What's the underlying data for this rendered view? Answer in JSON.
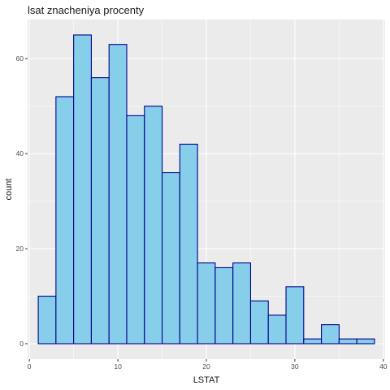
{
  "chart_data": {
    "type": "bar",
    "title": "lsat znacheniya procenty",
    "xlabel": "LSTAT",
    "ylabel": "count",
    "bin_width": 2,
    "bins": [
      {
        "x0": 1,
        "x1": 3,
        "count": 10
      },
      {
        "x0": 3,
        "x1": 5,
        "count": 52
      },
      {
        "x0": 5,
        "x1": 7,
        "count": 65
      },
      {
        "x0": 7,
        "x1": 9,
        "count": 56
      },
      {
        "x0": 9,
        "x1": 11,
        "count": 63
      },
      {
        "x0": 11,
        "x1": 13,
        "count": 48
      },
      {
        "x0": 13,
        "x1": 15,
        "count": 50
      },
      {
        "x0": 15,
        "x1": 17,
        "count": 36
      },
      {
        "x0": 17,
        "x1": 19,
        "count": 42
      },
      {
        "x0": 19,
        "x1": 21,
        "count": 17
      },
      {
        "x0": 21,
        "x1": 23,
        "count": 16
      },
      {
        "x0": 23,
        "x1": 25,
        "count": 17
      },
      {
        "x0": 25,
        "x1": 27,
        "count": 9
      },
      {
        "x0": 27,
        "x1": 29,
        "count": 6
      },
      {
        "x0": 29,
        "x1": 31,
        "count": 12
      },
      {
        "x0": 31,
        "x1": 33,
        "count": 1
      },
      {
        "x0": 33,
        "x1": 35,
        "count": 4
      },
      {
        "x0": 35,
        "x1": 37,
        "count": 1
      },
      {
        "x0": 37,
        "x1": 39,
        "count": 1
      }
    ],
    "xlim": [
      -0.2,
      40.2
    ],
    "ylim": [
      -3.25,
      68.25
    ],
    "x_ticks": [
      0,
      10,
      20,
      30,
      40
    ],
    "y_ticks": [
      0,
      20,
      40,
      60
    ],
    "grid": true,
    "legend": "none",
    "colors": {
      "panel_bg": "#EBEBEB",
      "grid_major": "#FFFFFF",
      "bar_fill": "#87CEEB",
      "bar_outline": "#00008B"
    }
  }
}
